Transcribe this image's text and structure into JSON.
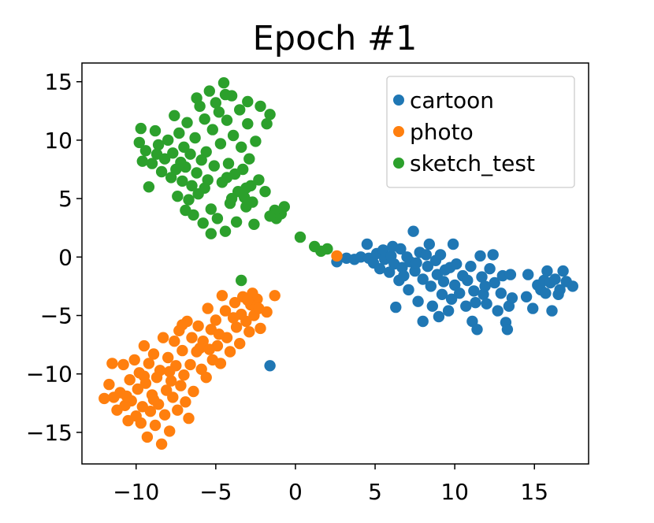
{
  "chart_data": {
    "type": "scatter",
    "title": "Epoch #1",
    "xlabel": "",
    "ylabel": "",
    "xlim": [
      -13.4,
      18.4
    ],
    "ylim": [
      -17.7,
      16.6
    ],
    "x_ticks": [
      -10,
      -5,
      0,
      5,
      10,
      15
    ],
    "x_tick_labels": [
      "−10",
      "−5",
      "0",
      "5",
      "10",
      "15"
    ],
    "y_ticks": [
      15,
      10,
      5,
      0,
      -5,
      -10,
      -15
    ],
    "y_tick_labels": [
      "15",
      "10",
      "5",
      "0",
      "−5",
      "−10",
      "−15"
    ],
    "grid": false,
    "legend_position": "top-right",
    "series": [
      {
        "name": "cartoon",
        "color": "#1f77b4",
        "points": [
          [
            2.6,
            -0.4
          ],
          [
            3.2,
            -0.1
          ],
          [
            3.7,
            -0.2
          ],
          [
            4.1,
            0.0
          ],
          [
            4.5,
            1.1
          ],
          [
            4.6,
            -0.1
          ],
          [
            4.9,
            -0.5
          ],
          [
            5.1,
            0.3
          ],
          [
            5.3,
            -1.0
          ],
          [
            5.5,
            0.6
          ],
          [
            5.6,
            -0.2
          ],
          [
            5.9,
            -1.3
          ],
          [
            6.0,
            0.1
          ],
          [
            6.1,
            0.9
          ],
          [
            6.2,
            -0.6
          ],
          [
            6.3,
            -4.3
          ],
          [
            6.5,
            -2.0
          ],
          [
            6.6,
            0.7
          ],
          [
            6.7,
            -0.9
          ],
          [
            6.8,
            -1.6
          ],
          [
            7.0,
            0.0
          ],
          [
            7.1,
            -2.8
          ],
          [
            7.2,
            -0.4
          ],
          [
            7.4,
            2.2
          ],
          [
            7.5,
            -1.2
          ],
          [
            7.6,
            -0.5
          ],
          [
            7.7,
            -3.8
          ],
          [
            7.8,
            0.4
          ],
          [
            8.0,
            -5.5
          ],
          [
            8.0,
            -1.9
          ],
          [
            8.2,
            0.2
          ],
          [
            8.3,
            -0.8
          ],
          [
            8.4,
            1.1
          ],
          [
            8.5,
            -2.5
          ],
          [
            8.6,
            -4.2
          ],
          [
            8.8,
            -0.3
          ],
          [
            8.9,
            -1.5
          ],
          [
            9.0,
            -5.1
          ],
          [
            9.1,
            0.2
          ],
          [
            9.2,
            -3.2
          ],
          [
            9.3,
            -2.1
          ],
          [
            9.4,
            -1.1
          ],
          [
            9.6,
            -4.6
          ],
          [
            9.7,
            -0.9
          ],
          [
            9.8,
            -3.6
          ],
          [
            9.9,
            1.1
          ],
          [
            10.0,
            -2.4
          ],
          [
            10.1,
            -0.6
          ],
          [
            10.3,
            -3.1
          ],
          [
            10.5,
            -1.6
          ],
          [
            10.7,
            -4.2
          ],
          [
            10.8,
            -2.0
          ],
          [
            11.0,
            -0.8
          ],
          [
            11.1,
            -5.5
          ],
          [
            11.2,
            -2.9
          ],
          [
            11.3,
            -3.9
          ],
          [
            11.4,
            -6.2
          ],
          [
            11.6,
            0.1
          ],
          [
            11.7,
            -1.7
          ],
          [
            11.8,
            -3.2
          ],
          [
            11.9,
            -2.5
          ],
          [
            12.0,
            -4.0
          ],
          [
            12.2,
            -1.0
          ],
          [
            12.4,
            0.2
          ],
          [
            12.5,
            -2.2
          ],
          [
            12.7,
            -4.6
          ],
          [
            12.9,
            -3.1
          ],
          [
            13.0,
            -1.6
          ],
          [
            13.2,
            -5.6
          ],
          [
            13.3,
            -6.2
          ],
          [
            13.4,
            -4.2
          ],
          [
            13.5,
            -1.5
          ],
          [
            13.6,
            -3.5
          ],
          [
            14.5,
            -3.4
          ],
          [
            14.6,
            -1.5
          ],
          [
            14.9,
            -4.4
          ],
          [
            15.2,
            -2.4
          ],
          [
            15.4,
            -2.8
          ],
          [
            15.6,
            -2.0
          ],
          [
            15.7,
            -3.1
          ],
          [
            15.8,
            -1.2
          ],
          [
            16.0,
            -2.2
          ],
          [
            16.1,
            -4.6
          ],
          [
            16.3,
            -1.9
          ],
          [
            16.5,
            -3.2
          ],
          [
            16.6,
            -2.8
          ],
          [
            16.8,
            -1.2
          ],
          [
            17.0,
            -2.1
          ],
          [
            17.4,
            -2.5
          ],
          [
            -1.6,
            -9.3
          ]
        ]
      },
      {
        "name": "photo",
        "color": "#ff7f0e",
        "points": [
          [
            2.6,
            0.1
          ],
          [
            -1.3,
            -3.3
          ],
          [
            -1.8,
            -4.7
          ],
          [
            -2.2,
            -6.1
          ],
          [
            -2.4,
            -3.6
          ],
          [
            -2.6,
            -5.0
          ],
          [
            -2.7,
            -3.1
          ],
          [
            -2.8,
            -4.1
          ],
          [
            -2.9,
            -6.4
          ],
          [
            -3.1,
            -5.5
          ],
          [
            -3.3,
            -3.4
          ],
          [
            -3.4,
            -4.9
          ],
          [
            -3.5,
            -7.4
          ],
          [
            -3.7,
            -6.0
          ],
          [
            -3.8,
            -3.9
          ],
          [
            -3.9,
            -5.2
          ],
          [
            -4.1,
            -8.1
          ],
          [
            -4.3,
            -6.9
          ],
          [
            -4.4,
            -4.6
          ],
          [
            -4.6,
            -3.3
          ],
          [
            -4.7,
            -9.1
          ],
          [
            -4.9,
            -7.6
          ],
          [
            -5.0,
            -5.4
          ],
          [
            -5.2,
            -8.8
          ],
          [
            -5.3,
            -6.2
          ],
          [
            -5.5,
            -4.4
          ],
          [
            -5.6,
            -10.3
          ],
          [
            -5.8,
            -7.2
          ],
          [
            -5.9,
            -9.6
          ],
          [
            -6.1,
            -5.9
          ],
          [
            -6.2,
            -8.1
          ],
          [
            -6.4,
            -11.5
          ],
          [
            -6.5,
            -6.9
          ],
          [
            -6.6,
            -9.2
          ],
          [
            -6.7,
            -13.8
          ],
          [
            -6.8,
            -5.5
          ],
          [
            -6.9,
            -12.4
          ],
          [
            -7.0,
            -10.1
          ],
          [
            -7.1,
            -8.0
          ],
          [
            -7.2,
            -11.0
          ],
          [
            -7.3,
            -6.3
          ],
          [
            -7.4,
            -13.1
          ],
          [
            -7.5,
            -9.3
          ],
          [
            -7.6,
            -7.2
          ],
          [
            -7.7,
            -12.0
          ],
          [
            -7.8,
            -10.6
          ],
          [
            -7.9,
            -14.9
          ],
          [
            -8.0,
            -8.6
          ],
          [
            -8.1,
            -11.4
          ],
          [
            -8.2,
            -13.5
          ],
          [
            -8.3,
            -6.9
          ],
          [
            -8.4,
            -16.0
          ],
          [
            -8.5,
            -9.7
          ],
          [
            -8.6,
            -12.6
          ],
          [
            -8.7,
            -10.3
          ],
          [
            -8.8,
            -14.4
          ],
          [
            -8.9,
            -8.3
          ],
          [
            -9.0,
            -11.8
          ],
          [
            -9.1,
            -13.2
          ],
          [
            -9.2,
            -9.1
          ],
          [
            -9.3,
            -15.4
          ],
          [
            -9.4,
            -10.8
          ],
          [
            -9.5,
            -7.6
          ],
          [
            -9.6,
            -12.8
          ],
          [
            -9.7,
            -14.2
          ],
          [
            -9.8,
            -9.9
          ],
          [
            -9.9,
            -11.3
          ],
          [
            -10.0,
            -13.6
          ],
          [
            -10.1,
            -8.8
          ],
          [
            -10.3,
            -12.3
          ],
          [
            -10.4,
            -10.5
          ],
          [
            -10.5,
            -14.0
          ],
          [
            -10.7,
            -12.7
          ],
          [
            -10.8,
            -9.2
          ],
          [
            -11.0,
            -11.6
          ],
          [
            -11.2,
            -13.1
          ],
          [
            -11.4,
            -12.0
          ],
          [
            -11.5,
            -9.1
          ],
          [
            -11.7,
            -10.9
          ],
          [
            -12.0,
            -12.1
          ],
          [
            -2.3,
            -4.4
          ],
          [
            -3.0,
            -3.7
          ],
          [
            -4.8,
            -6.6
          ],
          [
            -6.0,
            -7.8
          ],
          [
            -7.9,
            -9.8
          ],
          [
            -8.9,
            -12.2
          ],
          [
            -9.5,
            -10.2
          ],
          [
            -10.6,
            -11.9
          ],
          [
            -7.1,
            -5.8
          ],
          [
            -5.4,
            -7.9
          ]
        ]
      },
      {
        "name": "sketch_test",
        "color": "#2ca02c",
        "points": [
          [
            2.0,
            0.7
          ],
          [
            1.6,
            0.5
          ],
          [
            1.2,
            0.9
          ],
          [
            0.3,
            1.7
          ],
          [
            -0.7,
            4.3
          ],
          [
            -0.9,
            3.7
          ],
          [
            -1.2,
            3.3
          ],
          [
            -1.3,
            4.0
          ],
          [
            -1.6,
            3.5
          ],
          [
            -1.9,
            5.6
          ],
          [
            -2.3,
            6.6
          ],
          [
            -2.6,
            2.8
          ],
          [
            -2.7,
            4.7
          ],
          [
            -2.8,
            6.1
          ],
          [
            -2.9,
            8.4
          ],
          [
            -3.0,
            11.4
          ],
          [
            -3.1,
            4.3
          ],
          [
            -3.2,
            5.1
          ],
          [
            -3.3,
            7.5
          ],
          [
            -3.4,
            9.4
          ],
          [
            -3.5,
            12.6
          ],
          [
            -3.6,
            5.6
          ],
          [
            -3.7,
            3.0
          ],
          [
            -3.8,
            7.1
          ],
          [
            -3.9,
            10.4
          ],
          [
            -4.0,
            13.8
          ],
          [
            -4.1,
            4.6
          ],
          [
            -4.2,
            8.0
          ],
          [
            -4.3,
            11.7
          ],
          [
            -4.4,
            2.2
          ],
          [
            -4.5,
            14.9
          ],
          [
            -4.6,
            6.4
          ],
          [
            -4.7,
            9.7
          ],
          [
            -4.8,
            12.4
          ],
          [
            -4.9,
            3.3
          ],
          [
            -5.0,
            13.2
          ],
          [
            -5.1,
            7.8
          ],
          [
            -5.2,
            10.9
          ],
          [
            -5.3,
            4.1
          ],
          [
            -5.4,
            14.2
          ],
          [
            -5.5,
            6.6
          ],
          [
            -5.6,
            9.0
          ],
          [
            -5.7,
            11.8
          ],
          [
            -5.8,
            2.9
          ],
          [
            -5.9,
            8.3
          ],
          [
            -6.0,
            12.9
          ],
          [
            -6.1,
            5.4
          ],
          [
            -6.2,
            7.2
          ],
          [
            -6.3,
            10.2
          ],
          [
            -6.4,
            3.6
          ],
          [
            -6.5,
            6.1
          ],
          [
            -6.6,
            8.8
          ],
          [
            -6.7,
            4.9
          ],
          [
            -6.8,
            11.5
          ],
          [
            -6.9,
            7.7
          ],
          [
            -7.0,
            9.4
          ],
          [
            -7.1,
            6.5
          ],
          [
            -7.2,
            8.1
          ],
          [
            -7.3,
            10.6
          ],
          [
            -7.4,
            5.2
          ],
          [
            -7.5,
            7.5
          ],
          [
            -7.6,
            12.1
          ],
          [
            -7.7,
            8.9
          ],
          [
            -7.8,
            6.8
          ],
          [
            -8.0,
            10.0
          ],
          [
            -8.2,
            8.4
          ],
          [
            -8.4,
            7.3
          ],
          [
            -8.6,
            9.6
          ],
          [
            -8.8,
            10.8
          ],
          [
            -9.0,
            8.0
          ],
          [
            -9.2,
            6.0
          ],
          [
            -9.4,
            9.1
          ],
          [
            -9.6,
            8.2
          ],
          [
            -9.7,
            11.0
          ],
          [
            -9.8,
            9.8
          ],
          [
            -3.4,
            -2.0
          ],
          [
            -2.2,
            12.9
          ],
          [
            -3.0,
            13.3
          ],
          [
            -5.3,
            2.0
          ],
          [
            -6.2,
            13.6
          ],
          [
            -4.4,
            13.9
          ],
          [
            -1.6,
            12.2
          ],
          [
            -1.8,
            11.4
          ],
          [
            -2.5,
            9.9
          ],
          [
            -3.1,
            5.9
          ],
          [
            -5.7,
            5.9
          ],
          [
            -4.0,
            5.0
          ],
          [
            -4.3,
            6.8
          ],
          [
            -6.9,
            4.0
          ],
          [
            -8.7,
            8.8
          ]
        ]
      }
    ]
  }
}
